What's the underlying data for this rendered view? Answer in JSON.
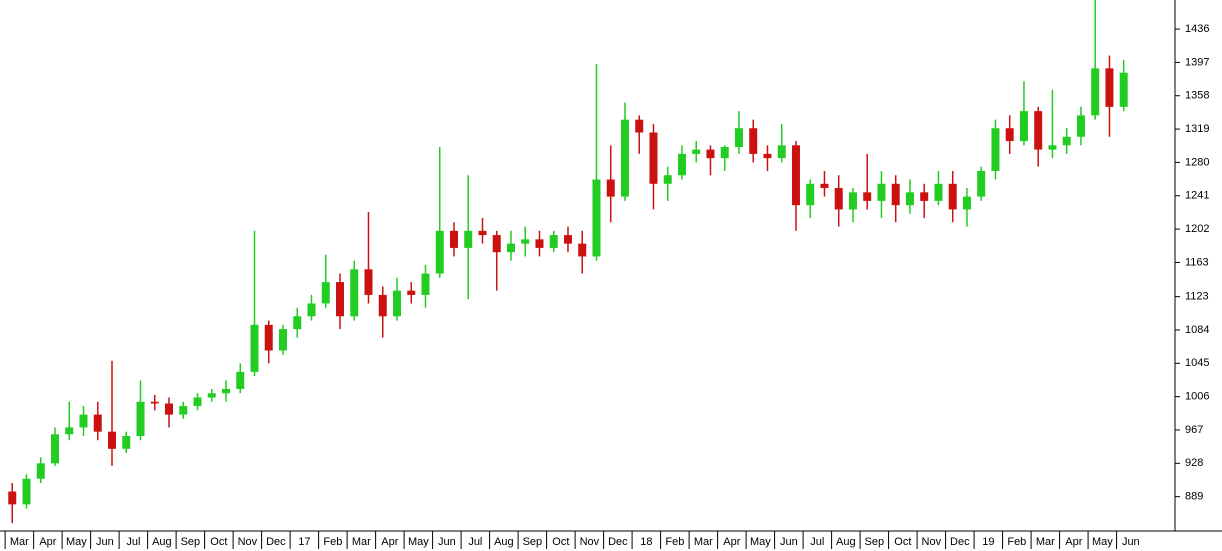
{
  "chart_data": {
    "type": "candlestick",
    "up_color": "#22cc22",
    "down_color": "#cc1111",
    "xlim": [
      -0.18,
      41.05
    ],
    "ylim": [
      850,
      1470
    ],
    "yticks": [
      889,
      928,
      967,
      1006,
      1045,
      1084,
      1123,
      1163,
      1202,
      1241,
      1280,
      1319,
      1358,
      1397,
      1436
    ],
    "xticks": [
      {
        "value": 0,
        "label": "Mar"
      },
      {
        "value": 1,
        "label": "Apr"
      },
      {
        "value": 2,
        "label": "May"
      },
      {
        "value": 3,
        "label": "Jun"
      },
      {
        "value": 4,
        "label": "Jul"
      },
      {
        "value": 5,
        "label": "Aug"
      },
      {
        "value": 6,
        "label": "Sep"
      },
      {
        "value": 7,
        "label": "Oct"
      },
      {
        "value": 8,
        "label": "Nov"
      },
      {
        "value": 9,
        "label": "Dec"
      },
      {
        "value": 10,
        "label": "17"
      },
      {
        "value": 11,
        "label": "Feb"
      },
      {
        "value": 12,
        "label": "Mar"
      },
      {
        "value": 13,
        "label": "Apr"
      },
      {
        "value": 14,
        "label": "May"
      },
      {
        "value": 15,
        "label": "Jun"
      },
      {
        "value": 16,
        "label": "Jul"
      },
      {
        "value": 17,
        "label": "Aug"
      },
      {
        "value": 18,
        "label": "Sep"
      },
      {
        "value": 19,
        "label": "Oct"
      },
      {
        "value": 20,
        "label": "Nov"
      },
      {
        "value": 21,
        "label": "Dec"
      },
      {
        "value": 22,
        "label": "18"
      },
      {
        "value": 23,
        "label": "Feb"
      },
      {
        "value": 24,
        "label": "Mar"
      },
      {
        "value": 25,
        "label": "Apr"
      },
      {
        "value": 26,
        "label": "May"
      },
      {
        "value": 27,
        "label": "Jun"
      },
      {
        "value": 28,
        "label": "Jul"
      },
      {
        "value": 29,
        "label": "Aug"
      },
      {
        "value": 30,
        "label": "Sep"
      },
      {
        "value": 31,
        "label": "Oct"
      },
      {
        "value": 32,
        "label": "Nov"
      },
      {
        "value": 33,
        "label": "Dec"
      },
      {
        "value": 34,
        "label": "19"
      },
      {
        "value": 35,
        "label": "Feb"
      },
      {
        "value": 36,
        "label": "Mar"
      },
      {
        "value": 37,
        "label": "Apr"
      },
      {
        "value": 38,
        "label": "May"
      },
      {
        "value": 39,
        "label": "Jun"
      }
    ],
    "x": [
      0.25,
      0.75,
      1.25,
      1.75,
      2.25,
      2.75,
      3.25,
      3.75,
      4.25,
      4.75,
      5.25,
      5.75,
      6.25,
      6.75,
      7.25,
      7.75,
      8.25,
      8.75,
      9.25,
      9.75,
      10.25,
      10.75,
      11.25,
      11.75,
      12.25,
      12.75,
      13.25,
      13.75,
      14.25,
      14.75,
      15.25,
      15.75,
      16.25,
      16.75,
      17.25,
      17.75,
      18.25,
      18.75,
      19.25,
      19.75,
      20.25,
      20.75,
      21.25,
      21.75,
      22.25,
      22.75,
      23.25,
      23.75,
      24.25,
      24.75,
      25.25,
      25.75,
      26.25,
      26.75,
      27.25,
      27.75,
      28.25,
      28.75,
      29.25,
      29.75,
      30.25,
      30.75,
      31.25,
      31.75,
      32.25,
      32.75,
      33.25,
      33.75,
      34.25,
      34.75,
      35.25,
      35.75,
      36.25,
      36.75,
      37.25,
      37.75,
      38.25,
      38.75,
      39.25
    ],
    "open": [
      895,
      880,
      910,
      928,
      962,
      970,
      985,
      965,
      945,
      960,
      1000,
      998,
      985,
      995,
      1005,
      1010,
      1015,
      1035,
      1090,
      1060,
      1085,
      1100,
      1115,
      1140,
      1100,
      1155,
      1125,
      1100,
      1130,
      1125,
      1150,
      1200,
      1180,
      1200,
      1195,
      1175,
      1185,
      1190,
      1180,
      1195,
      1185,
      1170,
      1260,
      1240,
      1330,
      1315,
      1255,
      1265,
      1290,
      1295,
      1285,
      1298,
      1320,
      1290,
      1285,
      1300,
      1230,
      1255,
      1250,
      1225,
      1245,
      1235,
      1255,
      1230,
      1245,
      1235,
      1255,
      1225,
      1240,
      1270,
      1320,
      1305,
      1340,
      1295,
      1300,
      1310,
      1335,
      1390,
      1345
    ],
    "high": [
      905,
      915,
      935,
      970,
      1000,
      995,
      1000,
      1048,
      965,
      1025,
      1008,
      1005,
      1000,
      1010,
      1015,
      1025,
      1045,
      1200,
      1095,
      1090,
      1110,
      1125,
      1172,
      1150,
      1165,
      1222,
      1135,
      1145,
      1140,
      1160,
      1298,
      1210,
      1265,
      1215,
      1200,
      1200,
      1205,
      1200,
      1200,
      1205,
      1200,
      1395,
      1300,
      1350,
      1335,
      1325,
      1275,
      1300,
      1305,
      1300,
      1300,
      1340,
      1330,
      1300,
      1325,
      1305,
      1260,
      1270,
      1265,
      1250,
      1290,
      1270,
      1265,
      1260,
      1255,
      1270,
      1270,
      1250,
      1275,
      1330,
      1335,
      1375,
      1345,
      1365,
      1320,
      1345,
      1470,
      1405,
      1400
    ],
    "low": [
      858,
      875,
      905,
      925,
      955,
      960,
      955,
      925,
      940,
      955,
      990,
      970,
      980,
      990,
      1000,
      1000,
      1010,
      1030,
      1045,
      1055,
      1075,
      1095,
      1110,
      1085,
      1095,
      1115,
      1075,
      1095,
      1115,
      1110,
      1145,
      1170,
      1120,
      1185,
      1130,
      1165,
      1170,
      1170,
      1175,
      1175,
      1150,
      1165,
      1210,
      1235,
      1290,
      1225,
      1235,
      1260,
      1280,
      1265,
      1270,
      1290,
      1280,
      1270,
      1280,
      1200,
      1215,
      1240,
      1205,
      1210,
      1225,
      1215,
      1210,
      1220,
      1215,
      1230,
      1210,
      1205,
      1235,
      1260,
      1290,
      1300,
      1275,
      1285,
      1290,
      1300,
      1330,
      1310,
      1340
    ],
    "close": [
      880,
      910,
      928,
      962,
      970,
      985,
      965,
      945,
      960,
      1000,
      998,
      985,
      995,
      1005,
      1010,
      1015,
      1035,
      1090,
      1060,
      1085,
      1100,
      1115,
      1140,
      1100,
      1155,
      1125,
      1100,
      1130,
      1125,
      1150,
      1200,
      1180,
      1200,
      1195,
      1175,
      1185,
      1190,
      1180,
      1195,
      1185,
      1170,
      1260,
      1240,
      1330,
      1315,
      1255,
      1265,
      1290,
      1295,
      1285,
      1298,
      1320,
      1290,
      1285,
      1300,
      1230,
      1255,
      1250,
      1225,
      1245,
      1235,
      1255,
      1230,
      1245,
      1235,
      1255,
      1225,
      1240,
      1270,
      1320,
      1305,
      1340,
      1295,
      1300,
      1310,
      1335,
      1390,
      1345,
      1385
    ]
  }
}
